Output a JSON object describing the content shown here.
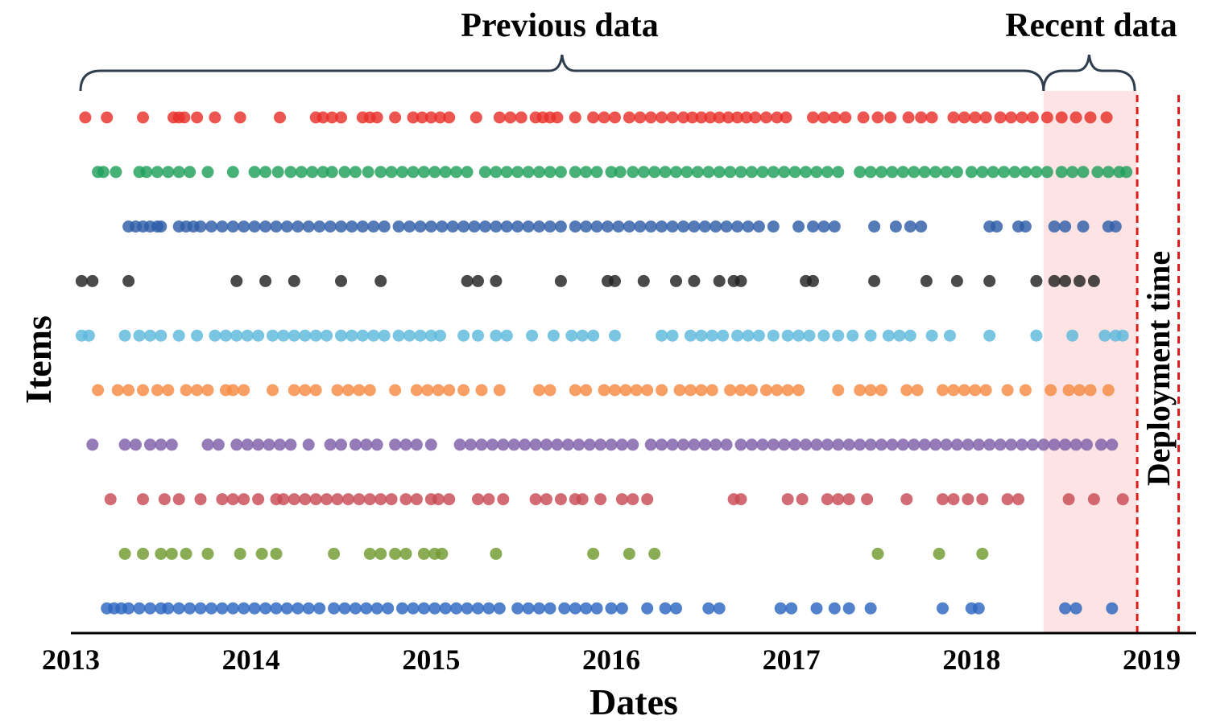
{
  "chart_data": {
    "type": "scatter",
    "xlabel": "Dates",
    "ylabel": "Items",
    "x_ticks": [
      "2013",
      "2014",
      "2015",
      "2016",
      "2017",
      "2018",
      "2019"
    ],
    "xlim": [
      2013.0,
      2019.0
    ],
    "grid": false,
    "annotations": {
      "previous": "Previous data",
      "recent": "Recent data",
      "deployment": "Deployment time"
    },
    "regions": {
      "previous": [
        2013.05,
        2018.4
      ],
      "recent": [
        2018.4,
        2018.92
      ],
      "deployment_line": 2019.15
    },
    "colors": {
      "recent_shade": "#fde3e3",
      "deployment_line": "#e01a1a",
      "axis": "#000000",
      "brace": "#2f3e4e"
    },
    "series": [
      {
        "color": "#e8302a",
        "x": [
          2013.08,
          2013.2,
          2013.4,
          2013.57,
          2013.6,
          2013.63,
          2013.7,
          2013.8,
          2013.94,
          2014.16,
          2014.36,
          2014.4,
          2014.45,
          2014.5,
          2014.62,
          2014.66,
          2014.7,
          2014.8,
          2014.9,
          2014.95,
          2015.0,
          2015.05,
          2015.1,
          2015.25,
          2015.38,
          2015.44,
          2015.5,
          2015.58,
          2015.62,
          2015.66,
          2015.7,
          2015.8,
          2015.9,
          2015.96,
          2016.02,
          2016.1,
          2016.16,
          2016.22,
          2016.28,
          2016.34,
          2016.4,
          2016.45,
          2016.5,
          2016.55,
          2016.6,
          2016.65,
          2016.7,
          2016.75,
          2016.8,
          2016.86,
          2016.92,
          2016.97,
          2017.12,
          2017.18,
          2017.24,
          2017.3,
          2017.4,
          2017.48,
          2017.55,
          2017.65,
          2017.72,
          2017.78,
          2017.9,
          2017.96,
          2018.02,
          2018.08,
          2018.16,
          2018.22,
          2018.28,
          2018.34,
          2018.42,
          2018.5,
          2018.58,
          2018.66,
          2018.75
        ]
      },
      {
        "color": "#1fa05a",
        "x": [
          2013.15,
          2013.18,
          2013.25,
          2013.38,
          2013.42,
          2013.48,
          2013.54,
          2013.6,
          2013.66,
          2013.76,
          2013.9,
          2014.02,
          2014.08,
          2014.15,
          2014.22,
          2014.28,
          2014.34,
          2014.4,
          2014.45,
          2014.52,
          2014.58,
          2014.65,
          2014.72,
          2014.78,
          2014.84,
          2014.9,
          2014.96,
          2015.02,
          2015.08,
          2015.14,
          2015.2,
          2015.3,
          2015.36,
          2015.42,
          2015.48,
          2015.54,
          2015.6,
          2015.66,
          2015.72,
          2015.8,
          2015.86,
          2015.92,
          2016.0,
          2016.05,
          2016.12,
          2016.18,
          2016.24,
          2016.3,
          2016.36,
          2016.42,
          2016.48,
          2016.54,
          2016.6,
          2016.66,
          2016.72,
          2016.78,
          2016.84,
          2016.9,
          2016.96,
          2017.02,
          2017.08,
          2017.14,
          2017.2,
          2017.26,
          2017.38,
          2017.44,
          2017.5,
          2017.56,
          2017.62,
          2017.68,
          2017.74,
          2017.8,
          2017.86,
          2017.92,
          2018.0,
          2018.06,
          2018.12,
          2018.18,
          2018.24,
          2018.3,
          2018.36,
          2018.42,
          2018.5,
          2018.56,
          2018.62,
          2018.7,
          2018.76,
          2018.82,
          2018.86
        ]
      },
      {
        "color": "#2e5ea8",
        "x": [
          2013.32,
          2013.36,
          2013.4,
          2013.44,
          2013.48,
          2013.5,
          2013.6,
          2013.64,
          2013.68,
          2013.72,
          2013.78,
          2013.84,
          2013.9,
          2013.96,
          2014.02,
          2014.08,
          2014.14,
          2014.2,
          2014.26,
          2014.32,
          2014.38,
          2014.44,
          2014.5,
          2014.56,
          2014.62,
          2014.68,
          2014.74,
          2014.82,
          2014.88,
          2014.94,
          2015.0,
          2015.06,
          2015.12,
          2015.18,
          2015.24,
          2015.3,
          2015.36,
          2015.42,
          2015.48,
          2015.54,
          2015.6,
          2015.66,
          2015.72,
          2015.8,
          2015.86,
          2015.92,
          2015.98,
          2016.04,
          2016.1,
          2016.16,
          2016.22,
          2016.28,
          2016.34,
          2016.4,
          2016.46,
          2016.52,
          2016.58,
          2016.64,
          2016.7,
          2016.76,
          2016.82,
          2016.9,
          2017.04,
          2017.12,
          2017.18,
          2017.24,
          2017.46,
          2017.58,
          2017.66,
          2017.72,
          2018.1,
          2018.14,
          2018.26,
          2018.3,
          2018.46,
          2018.52,
          2018.62,
          2018.76,
          2018.8
        ]
      },
      {
        "color": "#222222",
        "x": [
          2013.06,
          2013.12,
          2013.32,
          2013.92,
          2014.08,
          2014.24,
          2014.5,
          2014.72,
          2015.2,
          2015.26,
          2015.36,
          2015.72,
          2015.98,
          2016.02,
          2016.18,
          2016.36,
          2016.46,
          2016.6,
          2016.68,
          2016.72,
          2017.08,
          2017.12,
          2017.46,
          2017.75,
          2017.92,
          2018.1,
          2018.36,
          2018.46,
          2018.52,
          2018.6,
          2018.68
        ]
      },
      {
        "color": "#5bb8dc",
        "x": [
          2013.06,
          2013.1,
          2013.3,
          2013.38,
          2013.44,
          2013.5,
          2013.6,
          2013.7,
          2013.8,
          2013.86,
          2013.92,
          2013.98,
          2014.04,
          2014.12,
          2014.18,
          2014.24,
          2014.3,
          2014.36,
          2014.42,
          2014.5,
          2014.56,
          2014.62,
          2014.68,
          2014.74,
          2014.82,
          2014.88,
          2014.94,
          2015.0,
          2015.05,
          2015.18,
          2015.26,
          2015.36,
          2015.42,
          2015.56,
          2015.68,
          2015.78,
          2015.84,
          2015.9,
          2016.02,
          2016.28,
          2016.34,
          2016.44,
          2016.5,
          2016.56,
          2016.62,
          2016.7,
          2016.76,
          2016.82,
          2016.9,
          2016.98,
          2017.04,
          2017.1,
          2017.18,
          2017.26,
          2017.34,
          2017.44,
          2017.54,
          2017.6,
          2017.66,
          2017.78,
          2017.88,
          2018.1,
          2018.36,
          2018.56,
          2018.74,
          2018.8,
          2018.84
        ]
      },
      {
        "color": "#f58a42",
        "x": [
          2013.15,
          2013.26,
          2013.32,
          2013.4,
          2013.48,
          2013.54,
          2013.64,
          2013.7,
          2013.76,
          2013.86,
          2013.9,
          2013.96,
          2014.12,
          2014.24,
          2014.3,
          2014.36,
          2014.48,
          2014.54,
          2014.6,
          2014.66,
          2014.8,
          2014.92,
          2014.98,
          2015.04,
          2015.1,
          2015.18,
          2015.28,
          2015.38,
          2015.6,
          2015.66,
          2015.8,
          2015.86,
          2015.96,
          2016.02,
          2016.08,
          2016.14,
          2016.2,
          2016.28,
          2016.38,
          2016.44,
          2016.5,
          2016.56,
          2016.66,
          2016.72,
          2016.78,
          2016.86,
          2016.92,
          2016.98,
          2017.04,
          2017.26,
          2017.38,
          2017.44,
          2017.5,
          2017.64,
          2017.7,
          2017.84,
          2017.9,
          2017.96,
          2018.02,
          2018.08,
          2018.2,
          2018.3,
          2018.44,
          2018.54,
          2018.6,
          2018.66,
          2018.76
        ]
      },
      {
        "color": "#7e5faa",
        "x": [
          2013.12,
          2013.3,
          2013.36,
          2013.44,
          2013.5,
          2013.56,
          2013.76,
          2013.82,
          2013.92,
          2013.98,
          2014.04,
          2014.1,
          2014.16,
          2014.22,
          2014.32,
          2014.44,
          2014.5,
          2014.58,
          2014.64,
          2014.7,
          2014.8,
          2014.86,
          2014.92,
          2015.0,
          2015.16,
          2015.22,
          2015.28,
          2015.34,
          2015.4,
          2015.46,
          2015.52,
          2015.58,
          2015.64,
          2015.7,
          2015.76,
          2015.82,
          2015.88,
          2015.94,
          2016.0,
          2016.06,
          2016.12,
          2016.22,
          2016.28,
          2016.34,
          2016.4,
          2016.46,
          2016.52,
          2016.58,
          2016.64,
          2016.72,
          2016.78,
          2016.84,
          2016.9,
          2016.96,
          2017.02,
          2017.08,
          2017.14,
          2017.2,
          2017.26,
          2017.32,
          2017.38,
          2017.44,
          2017.5,
          2017.56,
          2017.62,
          2017.68,
          2017.74,
          2017.8,
          2017.86,
          2017.92,
          2017.98,
          2018.04,
          2018.1,
          2018.16,
          2018.22,
          2018.28,
          2018.34,
          2018.4,
          2018.46,
          2018.52,
          2018.58,
          2018.64,
          2018.72,
          2018.78
        ]
      },
      {
        "color": "#c84a54",
        "x": [
          2013.22,
          2013.4,
          2013.52,
          2013.6,
          2013.72,
          2013.84,
          2013.9,
          2013.96,
          2014.04,
          2014.14,
          2014.18,
          2014.24,
          2014.3,
          2014.36,
          2014.42,
          2014.48,
          2014.54,
          2014.6,
          2014.66,
          2014.72,
          2014.78,
          2014.86,
          2014.92,
          2015.0,
          2015.04,
          2015.1,
          2015.26,
          2015.32,
          2015.4,
          2015.58,
          2015.64,
          2015.72,
          2015.8,
          2015.84,
          2015.94,
          2016.06,
          2016.12,
          2016.2,
          2016.68,
          2016.72,
          2016.98,
          2017.06,
          2017.2,
          2017.26,
          2017.32,
          2017.42,
          2017.64,
          2017.84,
          2017.9,
          2017.98,
          2018.06,
          2018.2,
          2018.26,
          2018.54,
          2018.68,
          2018.84
        ]
      },
      {
        "color": "#6f9a30",
        "x": [
          2013.3,
          2013.4,
          2013.5,
          2013.56,
          2013.64,
          2013.76,
          2013.94,
          2014.06,
          2014.14,
          2014.46,
          2014.66,
          2014.72,
          2014.8,
          2014.86,
          2014.96,
          2015.02,
          2015.06,
          2015.36,
          2015.9,
          2016.1,
          2016.24,
          2017.48,
          2017.82,
          2018.06
        ]
      },
      {
        "color": "#2c66c0",
        "x": [
          2013.2,
          2013.24,
          2013.28,
          2013.32,
          2013.38,
          2013.44,
          2013.5,
          2013.54,
          2013.6,
          2013.66,
          2013.72,
          2013.78,
          2013.84,
          2013.9,
          2013.96,
          2014.02,
          2014.08,
          2014.14,
          2014.2,
          2014.26,
          2014.32,
          2014.38,
          2014.46,
          2014.52,
          2014.58,
          2014.64,
          2014.7,
          2014.76,
          2014.84,
          2014.9,
          2014.96,
          2015.02,
          2015.08,
          2015.14,
          2015.2,
          2015.26,
          2015.32,
          2015.38,
          2015.48,
          2015.54,
          2015.6,
          2015.66,
          2015.74,
          2015.8,
          2015.86,
          2015.92,
          2016.0,
          2016.06,
          2016.2,
          2016.3,
          2016.36,
          2016.54,
          2016.6,
          2016.94,
          2017.0,
          2017.14,
          2017.24,
          2017.32,
          2017.44,
          2017.84,
          2018.0,
          2018.04,
          2018.52,
          2018.58,
          2018.78
        ]
      }
    ]
  }
}
